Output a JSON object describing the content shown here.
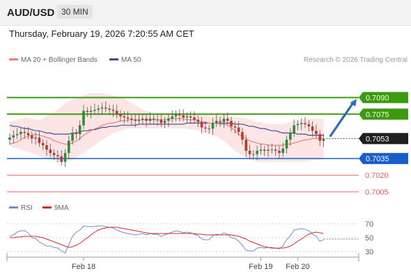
{
  "header": {
    "pair": "AUD/USD",
    "timeframe": "30 MIN"
  },
  "datetime": "Thursday, February 19, 2026 7:20:55 AM CET",
  "legend": {
    "ma20": "MA 20 + Bollinger Bands",
    "ma50": "MA 50",
    "credit": "Research © 2026 Trading Central",
    "rsi": "RSI",
    "rsi_ma": "9MA"
  },
  "colors": {
    "support_resistance": "#3c9a10",
    "pivot": "#1a5fc8",
    "lower_target": "#e85c5c",
    "ma20": "#f08080",
    "ma50": "#3b4f8e",
    "bollinger_fill": "#fde0e0",
    "candle_up": "#2e8b3a",
    "candle_down": "#c0392b",
    "arrow": "#2b6cb8",
    "rsi": "#6d8fd6",
    "rsi_ma": "#d9252a"
  },
  "chart_data": {
    "type": "candlestick",
    "ylim": [
      0.7,
      0.7104
    ],
    "current_price": "0.7053",
    "levels": [
      {
        "label": "0.7090",
        "value": 0.709,
        "style": "resistance"
      },
      {
        "label": "0.7075",
        "value": 0.7075,
        "style": "resistance"
      },
      {
        "label": "0.7035",
        "value": 0.7035,
        "style": "pivot"
      },
      {
        "label": "0.7020",
        "value": 0.702,
        "style": "target"
      },
      {
        "label": "0.7005",
        "value": 0.7005,
        "style": "target"
      }
    ],
    "x_tick_labels": [
      {
        "label": "Feb 18",
        "index": 20
      },
      {
        "label": "Feb 19",
        "index": 68
      },
      {
        "label": "Feb 20",
        "index": 78
      }
    ],
    "closes": [
      0.7054,
      0.7056,
      0.7057,
      0.7059,
      0.7058,
      0.7056,
      0.7053,
      0.7054,
      0.7049,
      0.7047,
      0.7043,
      0.704,
      0.7038,
      0.7037,
      0.7032,
      0.704,
      0.7051,
      0.7058,
      0.7057,
      0.7065,
      0.7078,
      0.7077,
      0.7078,
      0.7079,
      0.708,
      0.7081,
      0.708,
      0.7079,
      0.7078,
      0.7075,
      0.7073,
      0.7072,
      0.7071,
      0.707,
      0.7069,
      0.707,
      0.7071,
      0.7069,
      0.7071,
      0.707,
      0.707,
      0.7067,
      0.7069,
      0.7071,
      0.7073,
      0.7075,
      0.7074,
      0.7072,
      0.7073,
      0.7072,
      0.707,
      0.7068,
      0.7063,
      0.7062,
      0.7062,
      0.7067,
      0.7069,
      0.7068,
      0.7071,
      0.7069,
      0.7064,
      0.7063,
      0.7059,
      0.7052,
      0.7042,
      0.7039,
      0.7039,
      0.7042,
      0.7043,
      0.7042,
      0.7043,
      0.7043,
      0.7042,
      0.704,
      0.7044,
      0.7052,
      0.7058,
      0.7065,
      0.7066,
      0.7067,
      0.7066,
      0.7064,
      0.706,
      0.7057,
      0.7051,
      0.7053
    ],
    "ma20": [
      0.7048,
      0.7049,
      0.705,
      0.7052,
      0.7054,
      0.7055,
      0.7056,
      0.7057,
      0.7056,
      0.7055,
      0.7054,
      0.7053,
      0.7051,
      0.705,
      0.7049,
      0.7048,
      0.7048,
      0.7049,
      0.7051,
      0.7053,
      0.7056,
      0.7058,
      0.706,
      0.7062,
      0.7063,
      0.7065,
      0.7066,
      0.7067,
      0.7067,
      0.7068,
      0.7069,
      0.7069,
      0.707,
      0.707,
      0.707,
      0.707,
      0.707,
      0.707,
      0.707,
      0.707,
      0.707,
      0.707,
      0.707,
      0.7071,
      0.7071,
      0.7071,
      0.7071,
      0.7071,
      0.707,
      0.707,
      0.707,
      0.7069,
      0.7068,
      0.7068,
      0.7067,
      0.7067,
      0.7067,
      0.7066,
      0.7066,
      0.7065,
      0.7063,
      0.706,
      0.7057,
      0.7055,
      0.7053,
      0.7051,
      0.705,
      0.7049,
      0.7048,
      0.7048,
      0.7047,
      0.7047,
      0.7047,
      0.7047,
      0.7047,
      0.7048,
      0.7048,
      0.7049,
      0.705,
      0.7051,
      0.7052,
      0.7052,
      0.7053,
      0.7053,
      0.7053,
      0.7053
    ],
    "ma50": [
      0.7065,
      0.7064,
      0.7064,
      0.7063,
      0.7062,
      0.7062,
      0.7061,
      0.706,
      0.706,
      0.7059,
      0.7058,
      0.7058,
      0.7057,
      0.7057,
      0.7057,
      0.7057,
      0.7057,
      0.7058,
      0.7058,
      0.7059,
      0.706,
      0.706,
      0.7061,
      0.7061,
      0.7062,
      0.7063,
      0.7063,
      0.7064,
      0.7064,
      0.7064,
      0.7065,
      0.7065,
      0.7065,
      0.7065,
      0.7065,
      0.7066,
      0.7066,
      0.7066,
      0.7066,
      0.7066,
      0.7066,
      0.7066,
      0.7066,
      0.7066,
      0.7066,
      0.7066,
      0.7066,
      0.7066,
      0.7067,
      0.7067,
      0.7067,
      0.7067,
      0.7067,
      0.7067,
      0.7067,
      0.7067,
      0.7067,
      0.7067,
      0.7067,
      0.7067,
      0.7067,
      0.7066,
      0.7066,
      0.7066,
      0.7065,
      0.7064,
      0.7064,
      0.7063,
      0.7062,
      0.7062,
      0.7061,
      0.706,
      0.706,
      0.7059,
      0.7058,
      0.7058,
      0.7058,
      0.7058,
      0.7057,
      0.7057,
      0.7057,
      0.7056,
      0.7056,
      0.7056,
      0.7056,
      0.7056
    ],
    "bb_upper": [
      0.7068,
      0.7069,
      0.707,
      0.7071,
      0.7072,
      0.7072,
      0.7071,
      0.707,
      0.707,
      0.7071,
      0.7073,
      0.7075,
      0.7077,
      0.7079,
      0.7082,
      0.7085,
      0.7087,
      0.7088,
      0.7089,
      0.709,
      0.7092,
      0.7093,
      0.7094,
      0.7094,
      0.7094,
      0.7094,
      0.7093,
      0.7093,
      0.7092,
      0.7091,
      0.709,
      0.7089,
      0.7087,
      0.7085,
      0.7083,
      0.7081,
      0.7079,
      0.7078,
      0.7077,
      0.7076,
      0.7076,
      0.7076,
      0.7076,
      0.7076,
      0.7076,
      0.7076,
      0.7076,
      0.7076,
      0.7075,
      0.7075,
      0.7075,
      0.7075,
      0.7074,
      0.7074,
      0.7074,
      0.7074,
      0.7074,
      0.7074,
      0.7074,
      0.7073,
      0.7073,
      0.7072,
      0.7072,
      0.7072,
      0.7071,
      0.707,
      0.7069,
      0.7068,
      0.7068,
      0.7067,
      0.7066,
      0.7066,
      0.7066,
      0.7066,
      0.7066,
      0.7067,
      0.7068,
      0.7069,
      0.707,
      0.707,
      0.7071,
      0.7071,
      0.7071,
      0.7071,
      0.7071,
      0.7071
    ],
    "bb_lower": [
      0.7046,
      0.7045,
      0.7044,
      0.7043,
      0.7042,
      0.7041,
      0.704,
      0.7039,
      0.7037,
      0.7036,
      0.7035,
      0.7034,
      0.7034,
      0.7033,
      0.7033,
      0.7033,
      0.7033,
      0.7034,
      0.7036,
      0.7038,
      0.704,
      0.7042,
      0.7045,
      0.7047,
      0.705,
      0.7052,
      0.7054,
      0.7056,
      0.7058,
      0.7059,
      0.706,
      0.7061,
      0.7062,
      0.7062,
      0.7062,
      0.7062,
      0.7062,
      0.7062,
      0.7062,
      0.7062,
      0.7062,
      0.7062,
      0.7062,
      0.7062,
      0.7062,
      0.7062,
      0.7062,
      0.7062,
      0.7062,
      0.7061,
      0.7061,
      0.706,
      0.7059,
      0.7058,
      0.7057,
      0.7056,
      0.7055,
      0.7053,
      0.7051,
      0.7048,
      0.7045,
      0.7042,
      0.704,
      0.7038,
      0.7036,
      0.7034,
      0.7033,
      0.7032,
      0.7032,
      0.7032,
      0.7032,
      0.7032,
      0.7032,
      0.7032,
      0.7032,
      0.7032,
      0.7032,
      0.7032,
      0.7032,
      0.7032,
      0.7032,
      0.7033,
      0.7033,
      0.7034,
      0.7034,
      0.7035
    ],
    "rsi": {
      "ylim": [
        20,
        80
      ],
      "ticks": [
        "70",
        "50",
        "30"
      ],
      "reference_value": 48,
      "rsi": [
        52,
        54,
        58,
        60,
        60,
        57,
        50,
        49,
        44,
        41,
        38,
        38,
        36,
        35,
        31,
        28,
        40,
        52,
        58,
        61,
        67,
        66,
        66,
        66,
        67,
        67,
        66,
        65,
        64,
        61,
        59,
        57,
        56,
        55,
        54,
        55,
        56,
        54,
        56,
        55,
        55,
        52,
        54,
        56,
        58,
        60,
        59,
        57,
        58,
        57,
        55,
        53,
        48,
        47,
        47,
        53,
        55,
        54,
        57,
        55,
        50,
        49,
        45,
        39,
        32,
        31,
        31,
        35,
        36,
        35,
        36,
        36,
        35,
        34,
        38,
        47,
        53,
        61,
        62,
        63,
        62,
        60,
        55,
        52,
        45,
        47
      ],
      "rsi_ma": [
        50,
        50,
        51,
        51,
        52,
        52,
        52,
        52,
        51,
        50,
        48,
        46,
        44,
        42,
        40,
        38,
        36,
        37,
        39,
        42,
        46,
        50,
        54,
        58,
        61,
        63,
        64,
        65,
        65,
        65,
        64,
        63,
        62,
        61,
        60,
        59,
        58,
        57,
        56,
        56,
        56,
        56,
        56,
        56,
        56,
        56,
        56,
        56,
        56,
        56,
        56,
        55,
        55,
        54,
        54,
        54,
        54,
        54,
        54,
        54,
        54,
        53,
        52,
        50,
        48,
        45,
        43,
        41,
        39,
        37,
        36,
        35,
        35,
        35,
        35,
        36,
        38,
        41,
        45,
        48,
        52,
        55,
        57,
        58,
        57,
        56
      ]
    }
  }
}
